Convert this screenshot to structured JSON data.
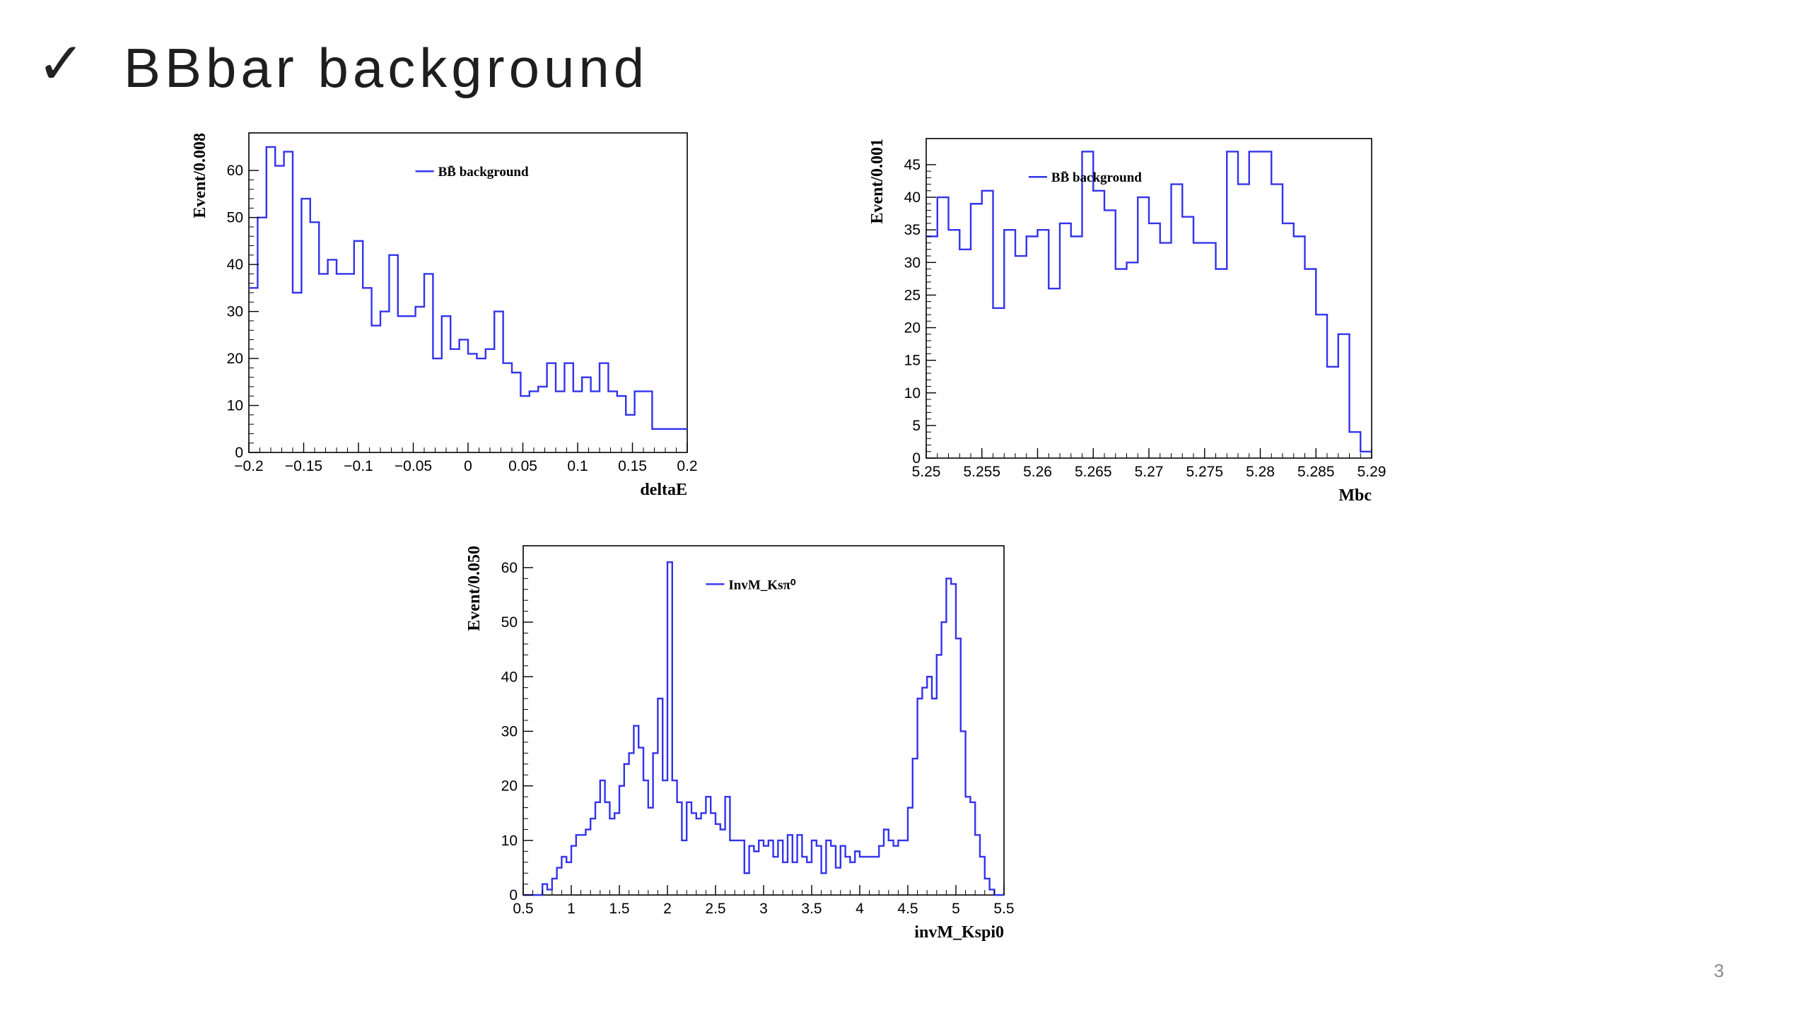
{
  "slide": {
    "check_glyph": "✓",
    "title": "BBbar background",
    "page_number": "3"
  },
  "colors": {
    "line": "#3333ee",
    "axis": "#000000",
    "frame": "#000000"
  },
  "chart_data": [
    {
      "type": "histogram",
      "title": "",
      "xlabel": "deltaE",
      "ylabel": "Event/0.008",
      "legend": {
        "label": "BB̄ background",
        "placement": "top-right"
      },
      "xlim": [
        -0.2,
        0.2
      ],
      "ylim": [
        0,
        68
      ],
      "xticks": [
        -0.2,
        -0.15,
        -0.1,
        -0.05,
        0,
        0.05,
        0.1,
        0.15,
        0.2
      ],
      "xtick_labels": [
        "−0.2",
        "−0.15",
        "−0.1",
        "−0.05",
        "0",
        "0.05",
        "0.1",
        "0.15",
        "0.2"
      ],
      "yticks": [
        0,
        10,
        20,
        30,
        40,
        50,
        60
      ],
      "ytick_labels": [
        "0",
        "10",
        "20",
        "30",
        "40",
        "50",
        "60"
      ],
      "bin_width": 0.008,
      "values": [
        35,
        50,
        65,
        61,
        64,
        34,
        54,
        49,
        38,
        41,
        38,
        38,
        45,
        35,
        27,
        30,
        42,
        29,
        29,
        31,
        38,
        20,
        29,
        22,
        24,
        21,
        20,
        22,
        30,
        19,
        17,
        12,
        13,
        14,
        19,
        13,
        19,
        13,
        16,
        13,
        19,
        13,
        12,
        8,
        13,
        13,
        5,
        5,
        5,
        5
      ]
    },
    {
      "type": "histogram",
      "title": "",
      "xlabel": "Mbc",
      "ylabel": "Event/0.001",
      "legend": {
        "label": "BB̄ background",
        "placement": "top-center"
      },
      "xlim": [
        5.25,
        5.29
      ],
      "ylim": [
        0,
        49
      ],
      "xticks": [
        5.25,
        5.255,
        5.26,
        5.265,
        5.27,
        5.275,
        5.28,
        5.285,
        5.29
      ],
      "xtick_labels": [
        "5.25",
        "5.255",
        "5.26",
        "5.265",
        "5.27",
        "5.275",
        "5.28",
        "5.285",
        "5.29"
      ],
      "yticks": [
        0,
        5,
        10,
        15,
        20,
        25,
        30,
        35,
        40,
        45
      ],
      "ytick_labels": [
        "0",
        "5",
        "10",
        "15",
        "20",
        "25",
        "30",
        "35",
        "40",
        "45"
      ],
      "bin_width": 0.001,
      "values": [
        34,
        40,
        35,
        32,
        39,
        41,
        23,
        35,
        31,
        34,
        35,
        26,
        36,
        34,
        47,
        41,
        38,
        29,
        30,
        40,
        36,
        33,
        42,
        37,
        33,
        33,
        29,
        47,
        42,
        47,
        47,
        42,
        36,
        34,
        29,
        22,
        14,
        19,
        4,
        1
      ]
    },
    {
      "type": "histogram",
      "title": "",
      "xlabel": "invM_Kspi0",
      "ylabel": "Event/0.050",
      "legend": {
        "label": "InvM_Ksπ⁰",
        "placement": "top-center"
      },
      "xlim": [
        0.5,
        5.5
      ],
      "ylim": [
        0,
        64
      ],
      "xticks": [
        0.5,
        1,
        1.5,
        2,
        2.5,
        3,
        3.5,
        4,
        4.5,
        5,
        5.5
      ],
      "xtick_labels": [
        "0.5",
        "1",
        "1.5",
        "2",
        "2.5",
        "3",
        "3.5",
        "4",
        "4.5",
        "5",
        "5.5"
      ],
      "yticks": [
        0,
        10,
        20,
        30,
        40,
        50,
        60
      ],
      "ytick_labels": [
        "0",
        "10",
        "20",
        "30",
        "40",
        "50",
        "60"
      ],
      "bin_width": 0.05,
      "values": [
        0,
        0,
        0,
        0,
        2,
        1,
        3,
        5,
        7,
        6,
        9,
        11,
        11,
        12,
        14,
        17,
        21,
        17,
        14,
        15,
        20,
        24,
        26,
        31,
        27,
        21,
        16,
        26,
        36,
        21,
        61,
        21,
        17,
        10,
        17,
        15,
        14,
        15,
        18,
        15,
        13,
        12,
        18,
        10,
        10,
        10,
        4,
        9,
        8,
        10,
        9,
        10,
        7,
        10,
        6,
        11,
        6,
        11,
        7,
        6,
        10,
        9,
        4,
        10,
        9,
        5,
        9,
        7,
        6,
        8,
        7,
        7,
        7,
        7,
        9,
        12,
        10,
        9,
        10,
        10,
        16,
        25,
        36,
        38,
        40,
        36,
        44,
        50,
        58,
        57,
        47,
        30,
        18,
        17,
        11,
        7,
        3,
        1,
        0,
        0
      ]
    }
  ]
}
